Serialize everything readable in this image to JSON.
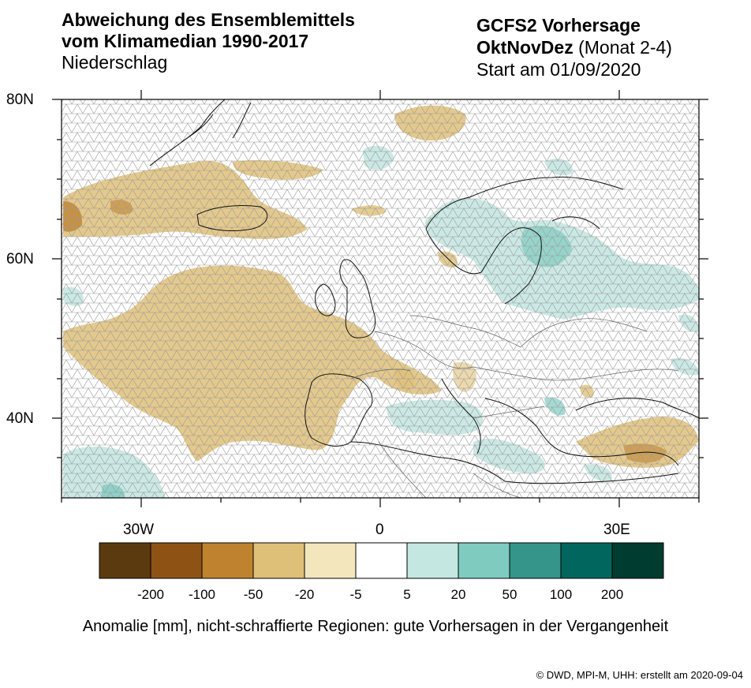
{
  "title": {
    "line1": "Abweichung des Ensemblemittels",
    "line2": "vom Klimamedian 1990-2017",
    "variable": "Niederschlag"
  },
  "forecast": {
    "model": "GCFS2 Vorhersage",
    "season": "OktNovDez",
    "months": "(Monat 2-4)",
    "start": "Start am 01/09/2020"
  },
  "axes": {
    "lat_labels": [
      "80N",
      "60N",
      "40N"
    ],
    "lon_labels": [
      "30W",
      "0",
      "30E"
    ]
  },
  "colorbar": {
    "colors": [
      "#5c3a0f",
      "#8e5314",
      "#bf8330",
      "#dfc078",
      "#f3e6bd",
      "#ffffff",
      "#c5e7e1",
      "#7fcbc0",
      "#35958b",
      "#01665e",
      "#003c30"
    ],
    "labels": [
      "-200",
      "-100",
      "-50",
      "-20",
      "-5",
      "5",
      "20",
      "50",
      "100",
      "200"
    ]
  },
  "caption": "Anomalie [mm], nicht-schraffierte Regionen: gute Vorhersagen in der Vergangenheit",
  "credit": "©  DWD, MPI-M, UHH: erstellt am 2020-09-04"
}
